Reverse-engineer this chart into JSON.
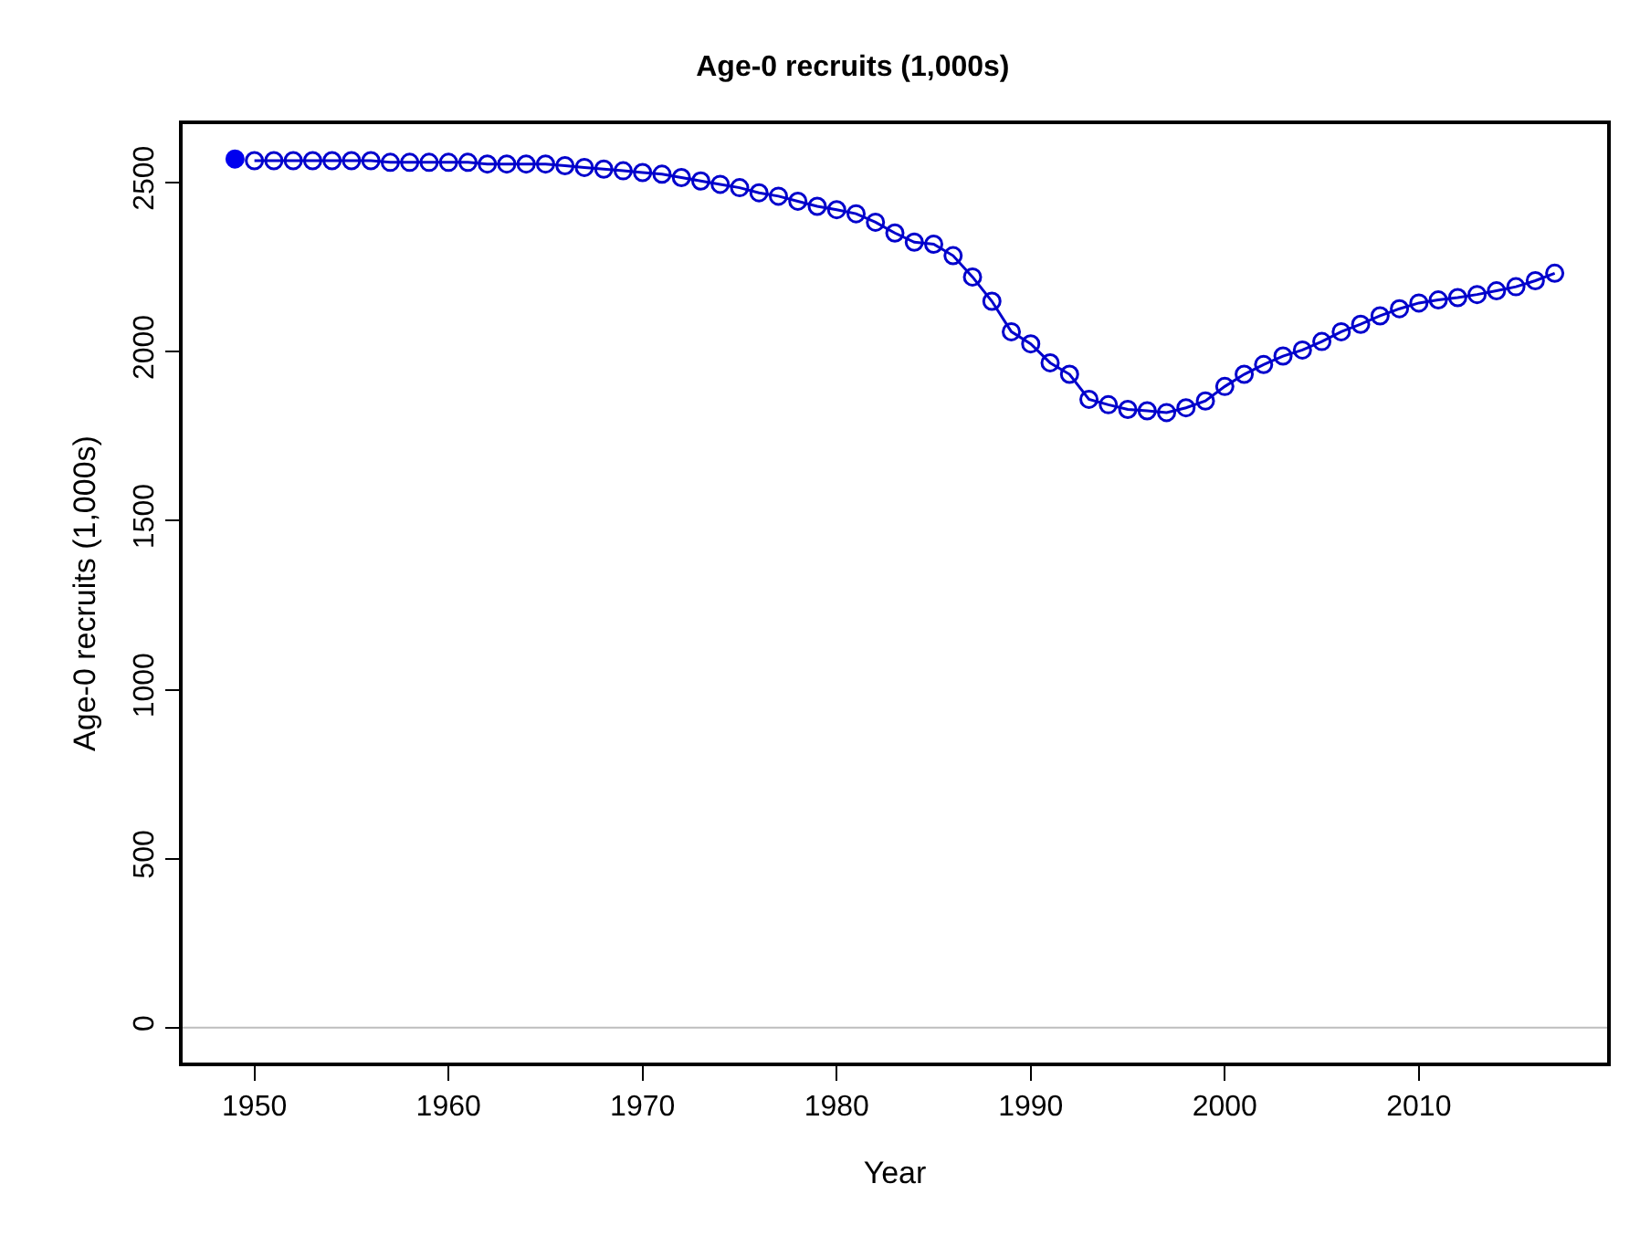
{
  "chart_data": {
    "type": "line",
    "title": "Age-0 recruits (1,000s)",
    "xlabel": "Year",
    "ylabel": "Age-0 recruits (1,000s)",
    "xlim": [
      1946.3,
      2019.7
    ],
    "xticks": [
      1950,
      1960,
      1970,
      1980,
      1990,
      2000,
      2010
    ],
    "ylim": [
      -103,
      2673
    ],
    "yticks": [
      0,
      500,
      1000,
      1500,
      2000,
      2500
    ],
    "grid": false,
    "marker": "circle",
    "ref_lines": [
      {
        "axis": "y",
        "value": 0,
        "color": "#bebebe"
      }
    ],
    "series": [
      {
        "type": "scatter",
        "color": "#0000ee",
        "x": [
          1949
        ],
        "values": [
          2570
        ]
      },
      {
        "color": "#0000cc",
        "line_style": "solid",
        "x": [
          1950,
          1951,
          1952,
          1953,
          1954,
          1955,
          1956,
          1957,
          1958,
          1959,
          1960,
          1961,
          1962,
          1963,
          1964,
          1965,
          1966,
          1967,
          1968,
          1969,
          1970,
          1971,
          1972,
          1973,
          1974,
          1975,
          1976,
          1977,
          1978,
          1979,
          1980,
          1981,
          1982,
          1983,
          1984,
          1985,
          1986,
          1987,
          1988,
          1989,
          1990,
          1991,
          1992,
          1993,
          1994,
          1995,
          1996,
          1997,
          1998,
          1999,
          2000,
          2001,
          2002,
          2003,
          2004,
          2005,
          2006,
          2007,
          2008,
          2009,
          2010,
          2011,
          2012,
          2013,
          2014,
          2015,
          2016,
          2017
        ],
        "values": [
          2565,
          2565,
          2565,
          2565,
          2565,
          2565,
          2565,
          2560,
          2560,
          2560,
          2560,
          2560,
          2555,
          2555,
          2555,
          2555,
          2550,
          2545,
          2540,
          2535,
          2530,
          2525,
          2515,
          2505,
          2495,
          2485,
          2470,
          2460,
          2445,
          2430,
          2420,
          2408,
          2383,
          2351,
          2324,
          2318,
          2284,
          2221,
          2149,
          2059,
          2023,
          1967,
          1933,
          1859,
          1843,
          1829,
          1825,
          1820,
          1834,
          1854,
          1897,
          1933,
          1962,
          1987,
          2005,
          2030,
          2059,
          2081,
          2106,
          2127,
          2144,
          2153,
          2160,
          2169,
          2180,
          2192,
          2210,
          2232
        ]
      }
    ]
  }
}
